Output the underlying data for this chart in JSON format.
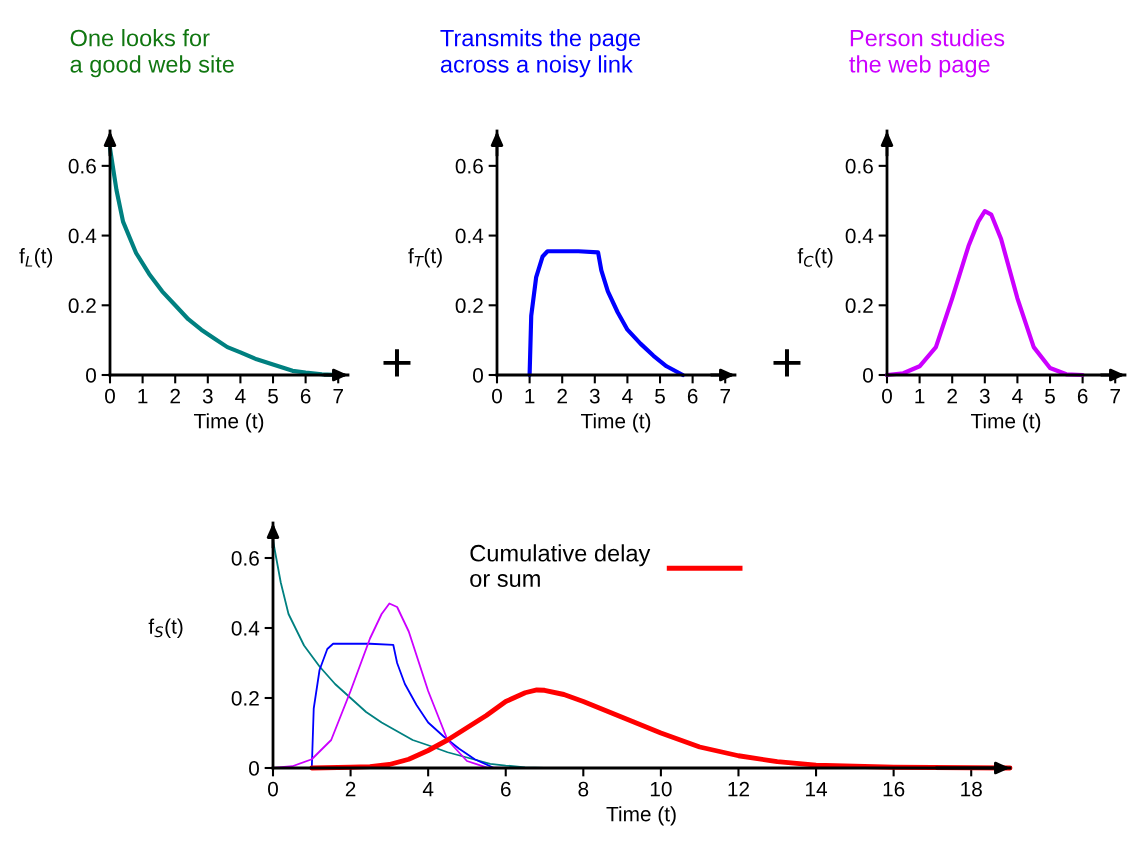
{
  "chart_data": [
    {
      "type": "line",
      "title": "One looks for\na good web site",
      "xlabel": "Time (t)",
      "ylabel": "f$_{L}$(t)",
      "xlim": [
        0,
        7.3
      ],
      "ylim": [
        0,
        0.7
      ],
      "xticks": [
        0,
        1,
        2,
        3,
        4,
        5,
        6,
        7
      ],
      "yticks": [
        0,
        0.2,
        0.4,
        0.6
      ],
      "grid": false,
      "legend": false,
      "series": [
        {
          "color": "#008080",
          "x": [
            0,
            0.2,
            0.4,
            0.8,
            1.2,
            1.6,
            2,
            2.4,
            2.8,
            3.2,
            3.6,
            4,
            4.5,
            5,
            5.6,
            6,
            6.5,
            7
          ],
          "values": [
            0.65,
            0.53,
            0.44,
            0.35,
            0.29,
            0.24,
            0.2,
            0.16,
            0.13,
            0.105,
            0.08,
            0.065,
            0.045,
            0.03,
            0.012,
            0.007,
            0.002,
            0
          ]
        }
      ]
    },
    {
      "type": "line",
      "title": "Transmits the page\nacross a noisy link",
      "annotations": [
        "+"
      ],
      "xlabel": "Time (t)",
      "ylabel": "f$_{T}$(t)",
      "xlim": [
        0,
        7.3
      ],
      "ylim": [
        0,
        0.7
      ],
      "xticks": [
        0,
        1,
        2,
        3,
        4,
        5,
        6,
        7
      ],
      "yticks": [
        0,
        0.2,
        0.4,
        0.6
      ],
      "grid": false,
      "legend": false,
      "series": [
        {
          "color": "#0000ff",
          "x": [
            1,
            1.05,
            1.2,
            1.4,
            1.55,
            2,
            2.5,
            3.1,
            3.2,
            3.4,
            3.7,
            4,
            4.4,
            4.8,
            5.2,
            5.7
          ],
          "values": [
            0,
            0.17,
            0.28,
            0.34,
            0.355,
            0.355,
            0.355,
            0.352,
            0.3,
            0.24,
            0.18,
            0.13,
            0.09,
            0.055,
            0.025,
            0
          ]
        }
      ]
    },
    {
      "type": "line",
      "title": "Person studies\nthe web page",
      "annotations": [
        "+"
      ],
      "xlabel": "Time (t)",
      "ylabel": "f$_{C}$(t)",
      "xlim": [
        0,
        7.3
      ],
      "ylim": [
        0,
        0.7
      ],
      "xticks": [
        0,
        1,
        2,
        3,
        4,
        5,
        6,
        7
      ],
      "yticks": [
        0,
        0.2,
        0.4,
        0.6
      ],
      "grid": false,
      "legend": false,
      "series": [
        {
          "color": "#cc00ff",
          "x": [
            0,
            0.5,
            1,
            1.5,
            2,
            2.5,
            2.8,
            3,
            3.2,
            3.5,
            4,
            4.5,
            5,
            5.5,
            6
          ],
          "values": [
            0,
            0.005,
            0.025,
            0.08,
            0.22,
            0.37,
            0.44,
            0.47,
            0.46,
            0.39,
            0.22,
            0.08,
            0.02,
            0.002,
            0
          ]
        }
      ]
    },
    {
      "type": "line",
      "xlabel": "Time (t)",
      "ylabel": "f$_{S}$(t)",
      "xlim": [
        0,
        19
      ],
      "ylim": [
        0,
        0.7
      ],
      "xticks": [
        0,
        2,
        4,
        6,
        8,
        10,
        12,
        14,
        16,
        18
      ],
      "yticks": [
        0,
        0.2,
        0.4,
        0.6
      ],
      "grid": false,
      "legend": "top",
      "series": [
        {
          "color": "#008080",
          "x": [
            0,
            0.2,
            0.4,
            0.8,
            1.2,
            1.6,
            2,
            2.4,
            2.8,
            3.2,
            3.6,
            4,
            4.5,
            5,
            5.6,
            6,
            6.5,
            7
          ],
          "values": [
            0.65,
            0.53,
            0.44,
            0.35,
            0.29,
            0.24,
            0.2,
            0.16,
            0.13,
            0.105,
            0.08,
            0.065,
            0.045,
            0.03,
            0.012,
            0.007,
            0.002,
            0
          ]
        },
        {
          "color": "#0000ff",
          "x": [
            1,
            1.05,
            1.2,
            1.4,
            1.55,
            2,
            2.5,
            3.1,
            3.2,
            3.4,
            3.7,
            4,
            4.4,
            4.8,
            5.2,
            5.7
          ],
          "values": [
            0,
            0.17,
            0.28,
            0.34,
            0.355,
            0.355,
            0.355,
            0.352,
            0.3,
            0.24,
            0.18,
            0.13,
            0.09,
            0.055,
            0.025,
            0
          ]
        },
        {
          "color": "#cc00ff",
          "x": [
            0,
            0.5,
            1,
            1.5,
            2,
            2.5,
            2.8,
            3,
            3.2,
            3.5,
            4,
            4.5,
            5,
            5.5,
            6
          ],
          "values": [
            0,
            0.005,
            0.025,
            0.08,
            0.22,
            0.37,
            0.44,
            0.47,
            0.46,
            0.39,
            0.22,
            0.08,
            0.02,
            0.002,
            0
          ]
        },
        {
          "name": "Cumulative delay\nor sum",
          "color": "#ff0000",
          "x": [
            1,
            2,
            2.5,
            3,
            3.5,
            4,
            4.5,
            5,
            5.5,
            6,
            6.5,
            6.8,
            7,
            7.5,
            8,
            9,
            10,
            11,
            12,
            13,
            14,
            16,
            19
          ],
          "values": [
            0,
            0.002,
            0.004,
            0.01,
            0.025,
            0.05,
            0.08,
            0.115,
            0.15,
            0.19,
            0.215,
            0.223,
            0.222,
            0.21,
            0.19,
            0.145,
            0.1,
            0.06,
            0.035,
            0.018,
            0.008,
            0.002,
            0
          ]
        }
      ]
    }
  ]
}
